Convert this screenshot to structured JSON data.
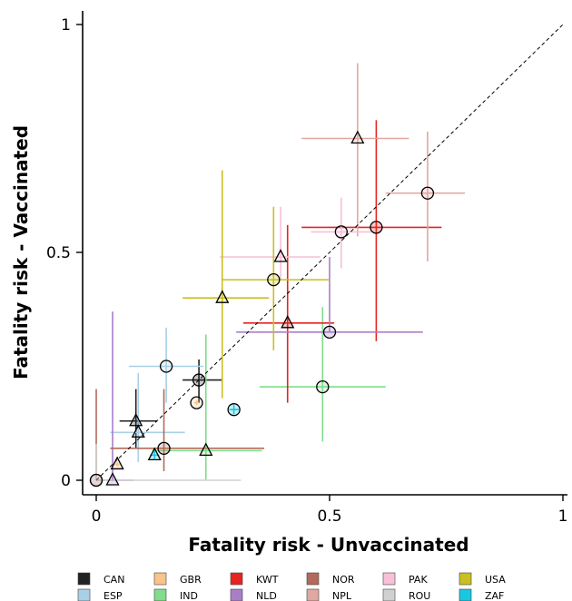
{
  "chart_data": {
    "type": "scatter",
    "title": "",
    "xlabel": "Fatality risk - Unvaccinated",
    "ylabel": "Fatality risk - Vaccinated",
    "xlim": [
      0,
      1
    ],
    "ylim": [
      0,
      1
    ],
    "xticks": [
      {
        "value": 0,
        "label": "0"
      },
      {
        "value": 0.5,
        "label": "0.5"
      },
      {
        "value": 1,
        "label": "1"
      }
    ],
    "yticks": [
      {
        "value": 0,
        "label": "0"
      },
      {
        "value": 0.5,
        "label": "0.5"
      },
      {
        "value": 1,
        "label": "1"
      }
    ],
    "reference_line": "y = x (dashed)",
    "grid": false,
    "legend_position": "bottom",
    "marker_shapes": [
      "circle",
      "triangle"
    ],
    "series": [
      {
        "name": "CAN",
        "color": "#222222",
        "points": [
          {
            "x": 0.22,
            "y": 0.22,
            "marker": "circle",
            "x_err": [
              0.185,
              0.27
            ],
            "y_err": [
              0.17,
              0.265
            ]
          },
          {
            "x": 0.085,
            "y": 0.13,
            "marker": "triangle",
            "x_err": [
              0.05,
              0.13
            ],
            "y_err": [
              0.07,
              0.2
            ]
          }
        ]
      },
      {
        "name": "ESP",
        "color": "#a8d0e6",
        "points": [
          {
            "x": 0.15,
            "y": 0.25,
            "marker": "circle",
            "x_err": [
              0.07,
              0.23
            ],
            "y_err": [
              0.17,
              0.335
            ]
          },
          {
            "x": 0.09,
            "y": 0.105,
            "marker": "triangle",
            "x_err": [
              0.03,
              0.19
            ],
            "y_err": [
              0.04,
              0.235
            ]
          }
        ]
      },
      {
        "name": "GBR",
        "color": "#f8c48c",
        "points": [
          {
            "x": 0.215,
            "y": 0.17,
            "marker": "circle",
            "x_err": [
              0.21,
              0.22
            ],
            "y_err": [
              0.165,
              0.175
            ]
          },
          {
            "x": 0.045,
            "y": 0.035,
            "marker": "triangle",
            "x_err": [
              0.04,
              0.05
            ],
            "y_err": [
              0.03,
              0.04
            ]
          }
        ]
      },
      {
        "name": "IND",
        "color": "#80dd8a",
        "points": [
          {
            "x": 0.485,
            "y": 0.205,
            "marker": "circle",
            "x_err": [
              0.35,
              0.62
            ],
            "y_err": [
              0.085,
              0.38
            ]
          },
          {
            "x": 0.235,
            "y": 0.065,
            "marker": "triangle",
            "x_err": [
              0.12,
              0.355
            ],
            "y_err": [
              0.0,
              0.32
            ]
          }
        ]
      },
      {
        "name": "KWT",
        "color": "#e52420",
        "points": [
          {
            "x": 0.6,
            "y": 0.555,
            "marker": "circle",
            "x_err": [
              0.44,
              0.74
            ],
            "y_err": [
              0.305,
              0.79
            ]
          },
          {
            "x": 0.41,
            "y": 0.345,
            "marker": "triangle",
            "x_err": [
              0.315,
              0.51
            ],
            "y_err": [
              0.17,
              0.56
            ]
          }
        ]
      },
      {
        "name": "NLD",
        "color": "#a97ec8",
        "points": [
          {
            "x": 0.5,
            "y": 0.325,
            "marker": "circle",
            "x_err": [
              0.3,
              0.7
            ],
            "y_err": [
              0.325,
              0.49
            ]
          },
          {
            "x": 0.035,
            "y": 0.0,
            "marker": "triangle",
            "x_err": [
              0.0,
              0.08
            ],
            "y_err": [
              0.0,
              0.37
            ]
          }
        ]
      },
      {
        "name": "NOR",
        "color": "#b36a5c",
        "points": [
          {
            "x": 0.145,
            "y": 0.07,
            "marker": "circle",
            "x_err": [
              0.03,
              0.36
            ],
            "y_err": [
              0.02,
              0.2
            ]
          },
          {
            "x": 0.0,
            "y": 0.0,
            "marker": "circle",
            "x_err": [
              0.0,
              0.0
            ],
            "y_err": [
              0.0,
              0.2
            ]
          }
        ]
      },
      {
        "name": "NPL",
        "color": "#e0a8a0",
        "points": [
          {
            "x": 0.71,
            "y": 0.63,
            "marker": "circle",
            "x_err": [
              0.62,
              0.79
            ],
            "y_err": [
              0.48,
              0.765
            ]
          },
          {
            "x": 0.56,
            "y": 0.75,
            "marker": "triangle",
            "x_err": [
              0.44,
              0.67
            ],
            "y_err": [
              0.535,
              0.915
            ]
          }
        ]
      },
      {
        "name": "PAK",
        "color": "#f8c0d8",
        "points": [
          {
            "x": 0.525,
            "y": 0.545,
            "marker": "circle",
            "x_err": [
              0.46,
              0.59
            ],
            "y_err": [
              0.465,
              0.62
            ]
          },
          {
            "x": 0.395,
            "y": 0.49,
            "marker": "triangle",
            "x_err": [
              0.265,
              0.48
            ],
            "y_err": [
              0.44,
              0.6
            ]
          }
        ]
      },
      {
        "name": "ROU",
        "color": "#d0d0d0",
        "points": [
          {
            "x": 0.0,
            "y": 0.0,
            "marker": "circle",
            "x_err": [
              0.0,
              0.31
            ],
            "y_err": [
              0.0,
              0.08
            ]
          }
        ]
      },
      {
        "name": "USA",
        "color": "#c8c020",
        "points": [
          {
            "x": 0.38,
            "y": 0.44,
            "marker": "circle",
            "x_err": [
              0.27,
              0.5
            ],
            "y_err": [
              0.285,
              0.6
            ]
          },
          {
            "x": 0.27,
            "y": 0.4,
            "marker": "triangle",
            "x_err": [
              0.185,
              0.37
            ],
            "y_err": [
              0.18,
              0.68
            ]
          }
        ]
      },
      {
        "name": "ZAF",
        "color": "#18c8e0",
        "points": [
          {
            "x": 0.295,
            "y": 0.155,
            "marker": "circle",
            "x_err": [
              0.285,
              0.305
            ],
            "y_err": [
              0.145,
              0.165
            ]
          },
          {
            "x": 0.125,
            "y": 0.055,
            "marker": "triangle",
            "x_err": [
              0.115,
              0.135
            ],
            "y_err": [
              0.045,
              0.065
            ]
          }
        ]
      }
    ],
    "legend": [
      {
        "name": "CAN",
        "color": "#222222"
      },
      {
        "name": "ESP",
        "color": "#a8d0e6"
      },
      {
        "name": "GBR",
        "color": "#f8c48c"
      },
      {
        "name": "IND",
        "color": "#80dd8a"
      },
      {
        "name": "KWT",
        "color": "#e52420"
      },
      {
        "name": "NLD",
        "color": "#a97ec8"
      },
      {
        "name": "NOR",
        "color": "#b36a5c"
      },
      {
        "name": "NPL",
        "color": "#e0a8a0"
      },
      {
        "name": "PAK",
        "color": "#f8c0d8"
      },
      {
        "name": "ROU",
        "color": "#d0d0d0"
      },
      {
        "name": "USA",
        "color": "#c8c020"
      },
      {
        "name": "ZAF",
        "color": "#18c8e0"
      }
    ]
  }
}
